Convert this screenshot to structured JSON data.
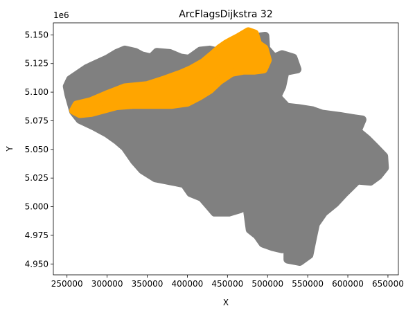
{
  "chart_data": {
    "type": "scatter",
    "title": "ArcFlagsDijkstra 32",
    "xlabel": "X",
    "ylabel": "Y",
    "y_offset_text": "1e6",
    "xlim": [
      233000,
      663000
    ],
    "ylim": [
      4940500,
      5160500
    ],
    "xticks": [
      250000,
      300000,
      350000,
      400000,
      450000,
      500000,
      550000,
      600000,
      650000
    ],
    "xtick_labels": [
      "250000",
      "300000",
      "350000",
      "400000",
      "450000",
      "500000",
      "550000",
      "600000",
      "650000"
    ],
    "yticks": [
      4950000,
      4975000,
      5000000,
      5025000,
      5050000,
      5075000,
      5100000,
      5125000,
      5150000
    ],
    "ytick_labels": [
      "4.950",
      "4.975",
      "5.000",
      "5.025",
      "5.050",
      "5.075",
      "5.100",
      "5.125",
      "5.150"
    ],
    "grid": false,
    "series": [
      {
        "color": "#808080",
        "outline": [
          [
            254000,
            5111000
          ],
          [
            275000,
            5121000
          ],
          [
            300000,
            5129000
          ],
          [
            312000,
            5134000
          ],
          [
            322000,
            5137000
          ],
          [
            335000,
            5135000
          ],
          [
            343000,
            5132000
          ],
          [
            355000,
            5130000
          ],
          [
            362000,
            5135000
          ],
          [
            378000,
            5134000
          ],
          [
            392000,
            5130000
          ],
          [
            402000,
            5129000
          ],
          [
            416000,
            5136000
          ],
          [
            428000,
            5137000
          ],
          [
            445000,
            5134000
          ],
          [
            458000,
            5139000
          ],
          [
            472000,
            5143000
          ],
          [
            486000,
            5148000
          ],
          [
            497000,
            5149000
          ],
          [
            498000,
            5138000
          ],
          [
            508000,
            5130000
          ],
          [
            518000,
            5133000
          ],
          [
            532000,
            5130000
          ],
          [
            537000,
            5120000
          ],
          [
            522000,
            5118000
          ],
          [
            518000,
            5105000
          ],
          [
            512000,
            5096000
          ],
          [
            524000,
            5087000
          ],
          [
            538000,
            5086000
          ],
          [
            556000,
            5084000
          ],
          [
            568000,
            5081000
          ],
          [
            590000,
            5079000
          ],
          [
            608000,
            5077000
          ],
          [
            618000,
            5076000
          ],
          [
            612000,
            5066000
          ],
          [
            624000,
            5059000
          ],
          [
            634000,
            5052000
          ],
          [
            645000,
            5044000
          ],
          [
            646000,
            5034000
          ],
          [
            638000,
            5027000
          ],
          [
            628000,
            5022000
          ],
          [
            612000,
            5023000
          ],
          [
            596000,
            5012000
          ],
          [
            584000,
            5003000
          ],
          [
            570000,
            4995000
          ],
          [
            560000,
            4985000
          ],
          [
            556000,
            4972000
          ],
          [
            552000,
            4958000
          ],
          [
            540000,
            4952000
          ],
          [
            525000,
            4954000
          ],
          [
            525000,
            4965000
          ],
          [
            518000,
            4963000
          ],
          [
            506000,
            4965000
          ],
          [
            494000,
            4968000
          ],
          [
            487000,
            4975000
          ],
          [
            478000,
            4980000
          ],
          [
            475000,
            4995000
          ],
          [
            474000,
            5003000
          ],
          [
            466000,
            4998000
          ],
          [
            452000,
            4995000
          ],
          [
            434000,
            4995000
          ],
          [
            428000,
            5000000
          ],
          [
            418000,
            5008000
          ],
          [
            404000,
            5012000
          ],
          [
            396000,
            5020000
          ],
          [
            382000,
            5022000
          ],
          [
            360000,
            5025000
          ],
          [
            344000,
            5032000
          ],
          [
            334000,
            5040000
          ],
          [
            322000,
            5052000
          ],
          [
            312000,
            5058000
          ],
          [
            300000,
            5064000
          ],
          [
            284000,
            5070000
          ],
          [
            266000,
            5076000
          ],
          [
            258000,
            5083000
          ],
          [
            252000,
            5098000
          ],
          [
            250000,
            5105000
          ]
        ]
      },
      {
        "color": "#ffa500",
        "outline": [
          [
            258000,
            5084000
          ],
          [
            262000,
            5089000
          ],
          [
            280000,
            5092000
          ],
          [
            300000,
            5098000
          ],
          [
            322000,
            5104000
          ],
          [
            350000,
            5106000
          ],
          [
            372000,
            5111000
          ],
          [
            392000,
            5116000
          ],
          [
            405000,
            5120000
          ],
          [
            420000,
            5126000
          ],
          [
            432000,
            5133000
          ],
          [
            440000,
            5138000
          ],
          [
            448000,
            5142000
          ],
          [
            453000,
            5144000
          ],
          [
            464000,
            5148000
          ],
          [
            476000,
            5153000
          ],
          [
            484000,
            5151000
          ],
          [
            488000,
            5142000
          ],
          [
            496000,
            5138000
          ],
          [
            500000,
            5128000
          ],
          [
            495000,
            5120000
          ],
          [
            484000,
            5119000
          ],
          [
            470000,
            5119000
          ],
          [
            455000,
            5117000
          ],
          [
            440000,
            5110000
          ],
          [
            428000,
            5102000
          ],
          [
            414000,
            5096000
          ],
          [
            400000,
            5091000
          ],
          [
            380000,
            5089000
          ],
          [
            356000,
            5089000
          ],
          [
            332000,
            5089000
          ],
          [
            312000,
            5088000
          ],
          [
            296000,
            5085000
          ],
          [
            280000,
            5082000
          ],
          [
            266000,
            5081000
          ]
        ]
      }
    ]
  }
}
